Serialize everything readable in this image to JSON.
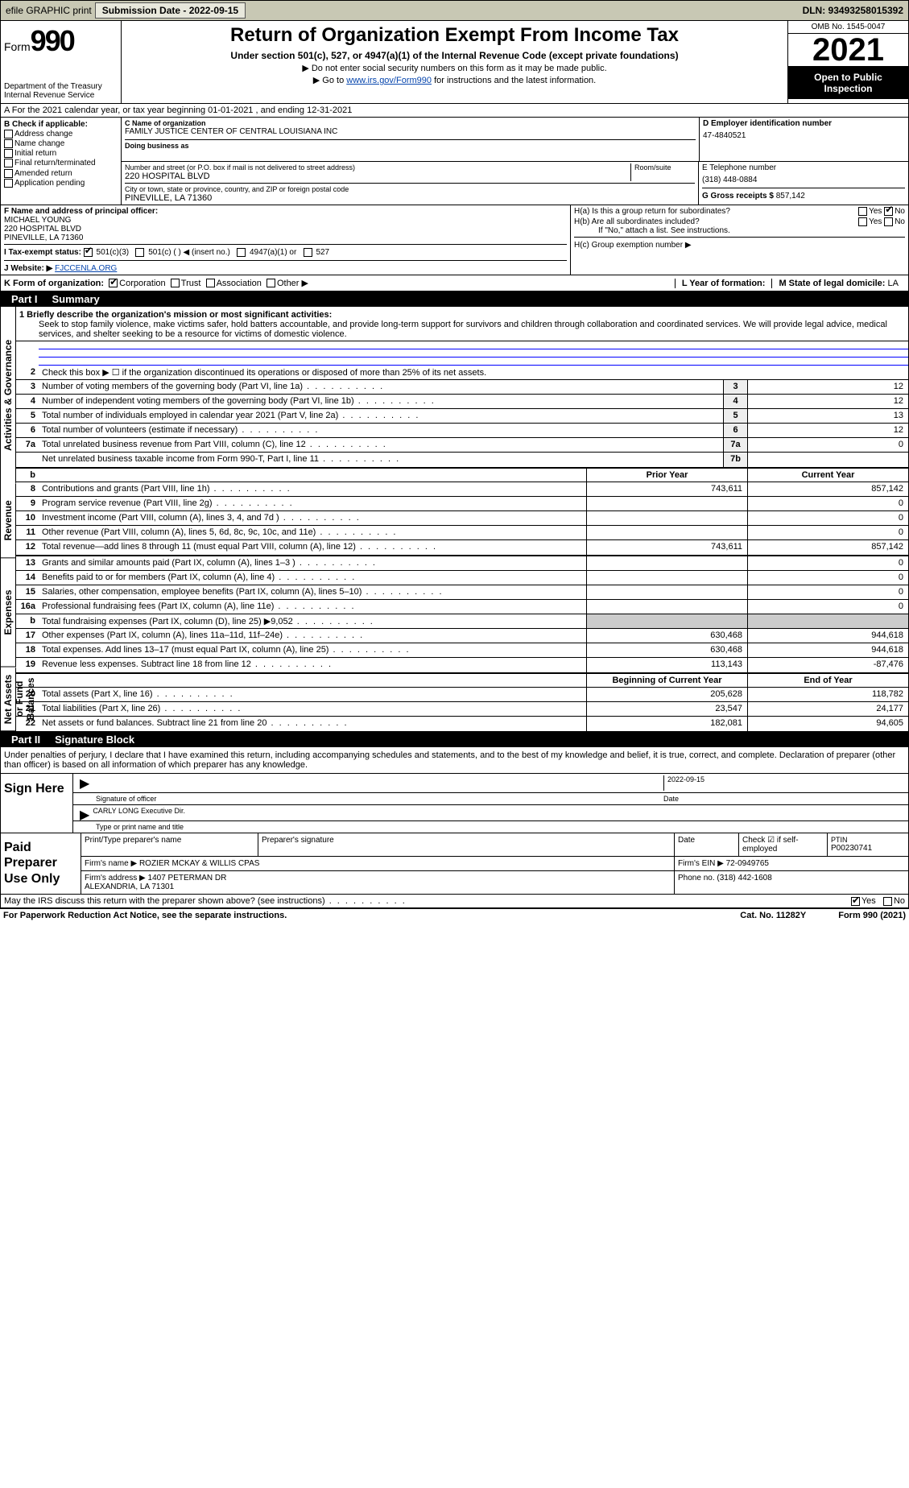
{
  "topbar": {
    "efile": "efile GRAPHIC print",
    "submission_label": "Submission Date - 2022-09-15",
    "dln": "DLN: 93493258015392"
  },
  "header": {
    "form_label": "Form",
    "form_number": "990",
    "dept": "Department of the Treasury\nInternal Revenue Service",
    "title": "Return of Organization Exempt From Income Tax",
    "subtitle": "Under section 501(c), 527, or 4947(a)(1) of the Internal Revenue Code (except private foundations)",
    "note1": "▶ Do not enter social security numbers on this form as it may be made public.",
    "note2_prefix": "▶ Go to ",
    "note2_link": "www.irs.gov/Form990",
    "note2_suffix": " for instructions and the latest information.",
    "omb": "OMB No. 1545-0047",
    "year": "2021",
    "inspection": "Open to Public Inspection"
  },
  "section_a": "A For the 2021 calendar year, or tax year beginning 01-01-2021    , and ending 12-31-2021",
  "section_b": {
    "title": "B Check if applicable:",
    "items": [
      "Address change",
      "Name change",
      "Initial return",
      "Final return/terminated",
      "Amended return",
      "Application pending"
    ]
  },
  "section_c": {
    "name_label": "C Name of organization",
    "name": "FAMILY JUSTICE CENTER OF CENTRAL LOUISIANA INC",
    "dba_label": "Doing business as",
    "street_label": "Number and street (or P.O. box if mail is not delivered to street address)",
    "room_label": "Room/suite",
    "street": "220 HOSPITAL BLVD",
    "city_label": "City or town, state or province, country, and ZIP or foreign postal code",
    "city": "PINEVILLE, LA  71360"
  },
  "section_d": {
    "label": "D Employer identification number",
    "value": "47-4840521"
  },
  "section_e": {
    "label": "E Telephone number",
    "value": "(318) 448-0884"
  },
  "section_g": {
    "label": "G Gross receipts $",
    "value": "857,142"
  },
  "section_f": {
    "label": "F Name and address of principal officer:",
    "name": "MICHAEL YOUNG",
    "addr1": "220 HOSPITAL BLVD",
    "addr2": "PINEVILLE, LA  71360"
  },
  "section_h": {
    "a": "H(a)  Is this a group return for subordinates?",
    "b": "H(b)  Are all subordinates included?",
    "b_note": "If \"No,\" attach a list. See instructions.",
    "c": "H(c)  Group exemption number ▶",
    "yes": "Yes",
    "no": "No"
  },
  "section_i": {
    "label": "I   Tax-exempt status:",
    "opt1": "501(c)(3)",
    "opt2": "501(c) (   ) ◀ (insert no.)",
    "opt3": "4947(a)(1) or",
    "opt4": "527"
  },
  "section_j": {
    "label": "J   Website: ▶",
    "value": "FJCCENLA.ORG"
  },
  "section_k": {
    "label": "K Form of organization:",
    "opts": [
      "Corporation",
      "Trust",
      "Association",
      "Other ▶"
    ]
  },
  "section_l": {
    "label": "L Year of formation:",
    "value": ""
  },
  "section_m": {
    "label": "M State of legal domicile:",
    "value": "LA"
  },
  "part1": {
    "header_part": "Part I",
    "header_title": "Summary",
    "groups": {
      "g1": "Activities & Governance",
      "g2": "Revenue",
      "g3": "Expenses",
      "g4": "Net Assets or Fund Balances"
    },
    "mission_label": "1  Briefly describe the organization's mission or most significant activities:",
    "mission": "Seek to stop family violence, make victims safer, hold batters accountable, and provide long-term support for survivors and children through collaboration and coordinated services. We will provide legal advice, medical services, and shelter seeking to be a resource for victims of domestic violence.",
    "line2": "Check this box ▶ ☐  if the organization discontinued its operations or disposed of more than 25% of its net assets.",
    "lines_a": [
      {
        "n": "3",
        "t": "Number of voting members of the governing body (Part VI, line 1a)",
        "box": "3",
        "v": "12"
      },
      {
        "n": "4",
        "t": "Number of independent voting members of the governing body (Part VI, line 1b)",
        "box": "4",
        "v": "12"
      },
      {
        "n": "5",
        "t": "Total number of individuals employed in calendar year 2021 (Part V, line 2a)",
        "box": "5",
        "v": "13"
      },
      {
        "n": "6",
        "t": "Total number of volunteers (estimate if necessary)",
        "box": "6",
        "v": "12"
      },
      {
        "n": "7a",
        "t": "Total unrelated business revenue from Part VIII, column (C), line 12",
        "box": "7a",
        "v": "0"
      },
      {
        "n": "",
        "t": "Net unrelated business taxable income from Form 990-T, Part I, line 11",
        "box": "7b",
        "v": ""
      }
    ],
    "col_headers": {
      "prior": "Prior Year",
      "current": "Current Year",
      "begin": "Beginning of Current Year",
      "end": "End of Year"
    },
    "lines_rev": [
      {
        "n": "8",
        "t": "Contributions and grants (Part VIII, line 1h)",
        "p": "743,611",
        "c": "857,142"
      },
      {
        "n": "9",
        "t": "Program service revenue (Part VIII, line 2g)",
        "p": "",
        "c": "0"
      },
      {
        "n": "10",
        "t": "Investment income (Part VIII, column (A), lines 3, 4, and 7d )",
        "p": "",
        "c": "0"
      },
      {
        "n": "11",
        "t": "Other revenue (Part VIII, column (A), lines 5, 6d, 8c, 9c, 10c, and 11e)",
        "p": "",
        "c": "0"
      },
      {
        "n": "12",
        "t": "Total revenue—add lines 8 through 11 (must equal Part VIII, column (A), line 12)",
        "p": "743,611",
        "c": "857,142"
      }
    ],
    "lines_exp": [
      {
        "n": "13",
        "t": "Grants and similar amounts paid (Part IX, column (A), lines 1–3 )",
        "p": "",
        "c": "0"
      },
      {
        "n": "14",
        "t": "Benefits paid to or for members (Part IX, column (A), line 4)",
        "p": "",
        "c": "0"
      },
      {
        "n": "15",
        "t": "Salaries, other compensation, employee benefits (Part IX, column (A), lines 5–10)",
        "p": "",
        "c": "0"
      },
      {
        "n": "16a",
        "t": "Professional fundraising fees (Part IX, column (A), line 11e)",
        "p": "",
        "c": "0"
      },
      {
        "n": "b",
        "t": "Total fundraising expenses (Part IX, column (D), line 25) ▶9,052",
        "p": "shade",
        "c": "shade"
      },
      {
        "n": "17",
        "t": "Other expenses (Part IX, column (A), lines 11a–11d, 11f–24e)",
        "p": "630,468",
        "c": "944,618"
      },
      {
        "n": "18",
        "t": "Total expenses. Add lines 13–17 (must equal Part IX, column (A), line 25)",
        "p": "630,468",
        "c": "944,618"
      },
      {
        "n": "19",
        "t": "Revenue less expenses. Subtract line 18 from line 12",
        "p": "113,143",
        "c": "-87,476"
      }
    ],
    "lines_net": [
      {
        "n": "20",
        "t": "Total assets (Part X, line 16)",
        "p": "205,628",
        "c": "118,782"
      },
      {
        "n": "21",
        "t": "Total liabilities (Part X, line 26)",
        "p": "23,547",
        "c": "24,177"
      },
      {
        "n": "22",
        "t": "Net assets or fund balances. Subtract line 21 from line 20",
        "p": "182,081",
        "c": "94,605"
      }
    ]
  },
  "part2": {
    "header_part": "Part II",
    "header_title": "Signature Block",
    "declaration": "Under penalties of perjury, I declare that I have examined this return, including accompanying schedules and statements, and to the best of my knowledge and belief, it is true, correct, and complete. Declaration of preparer (other than officer) is based on all information of which preparer has any knowledge.",
    "sign_here": "Sign Here",
    "sig_officer": "Signature of officer",
    "sig_date_label": "Date",
    "sig_date": "2022-09-15",
    "typed_name": "CARLY LONG  Executive Dir.",
    "typed_label": "Type or print name and title",
    "paid": "Paid Preparer Use Only",
    "paid_headers": [
      "Print/Type preparer's name",
      "Preparer's signature",
      "Date",
      "Check ☑ if self-employed",
      "PTIN"
    ],
    "ptin": "P00230741",
    "firm_name_label": "Firm's name    ▶",
    "firm_name": "ROZIER MCKAY & WILLIS CPAS",
    "firm_ein_label": "Firm's EIN ▶",
    "firm_ein": "72-0949765",
    "firm_addr_label": "Firm's address ▶",
    "firm_addr": "1407 PETERMAN DR\nALEXANDRIA, LA  71301",
    "firm_phone_label": "Phone no.",
    "firm_phone": "(318) 442-1608"
  },
  "footer": {
    "discuss": "May the IRS discuss this return with the preparer shown above? (see instructions)",
    "yes": "Yes",
    "no": "No",
    "paperwork": "For Paperwork Reduction Act Notice, see the separate instructions.",
    "cat": "Cat. No. 11282Y",
    "formrev": "Form 990 (2021)"
  }
}
